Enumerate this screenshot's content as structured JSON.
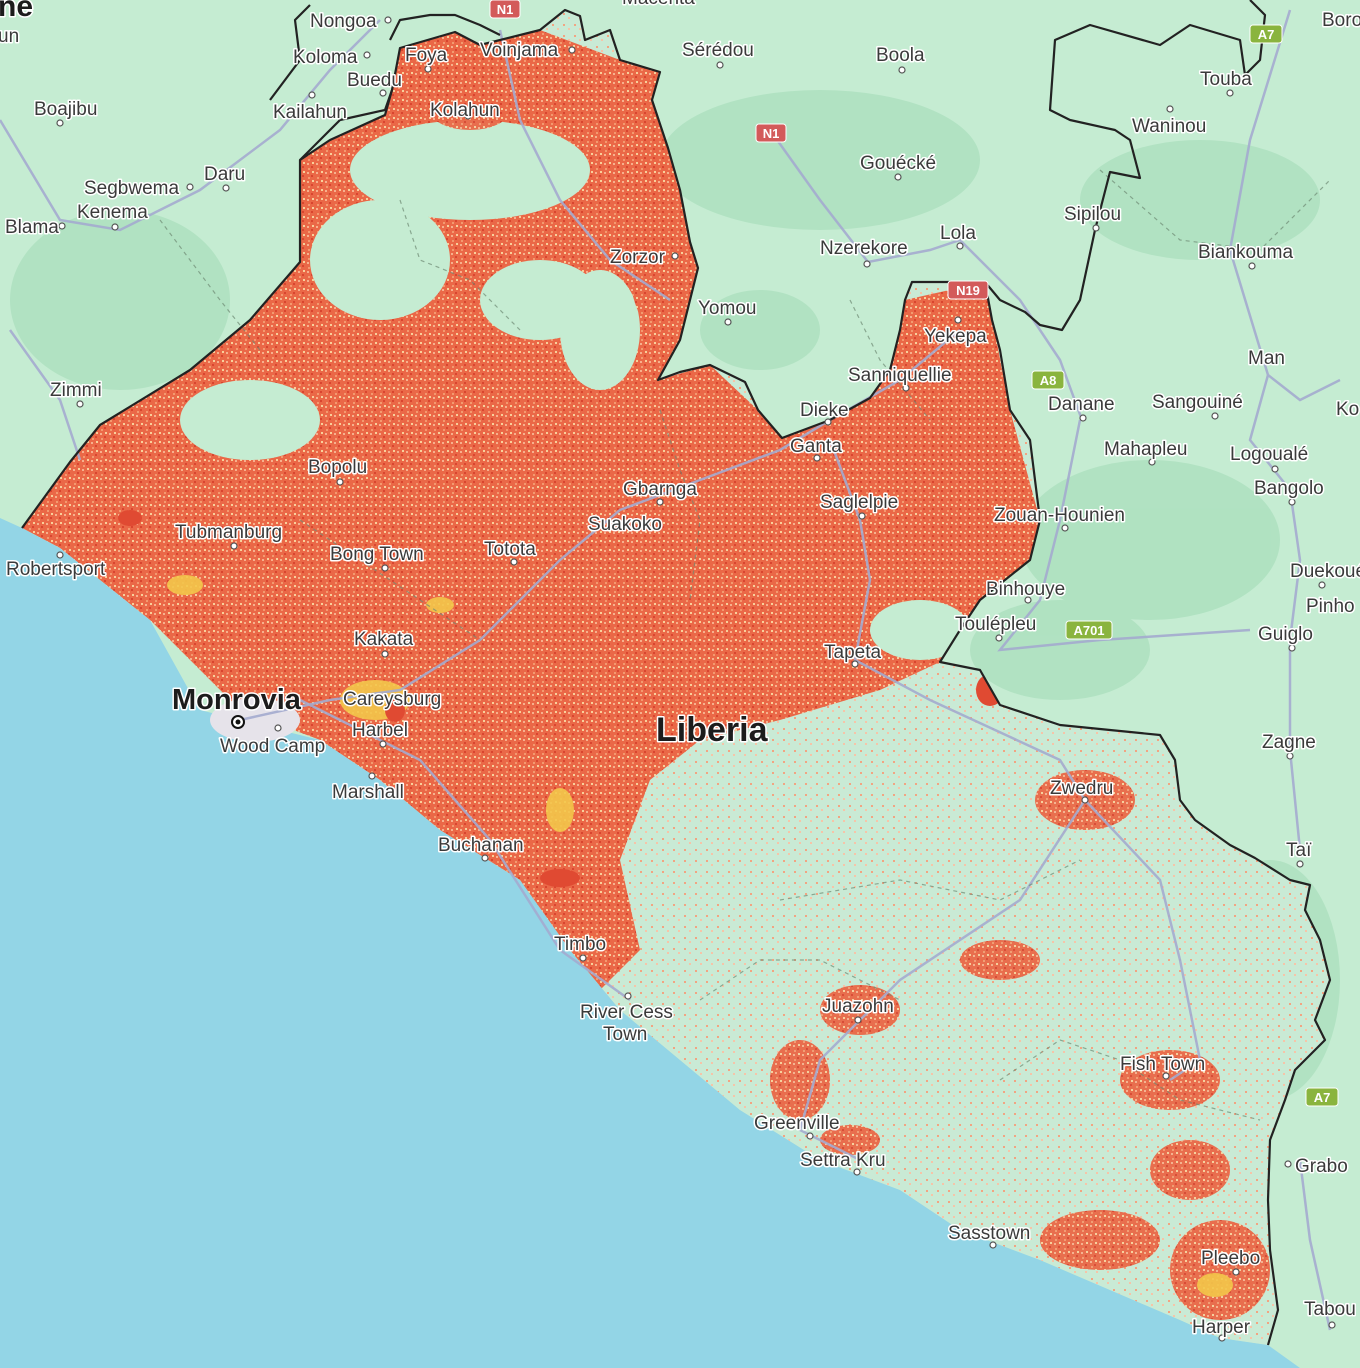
{
  "map": {
    "country_label": "Liberia",
    "capital_label": "Monrovia",
    "colors": {
      "ocean": "#93d5e6",
      "land": "#c5ecd2",
      "forest": "#abe0be",
      "heat_dense": "#e8583c",
      "heat_medium": "#f08a5a",
      "heat_light": "#f6b596",
      "heat_hot": "#f3c64a",
      "border": "#222222",
      "road": "#9aa3c8",
      "minor_road": "#7a8a7c"
    },
    "places": [
      {
        "name": "Nongoa"
      },
      {
        "name": "Koloma"
      },
      {
        "name": "Foya"
      },
      {
        "name": "Voinjama"
      },
      {
        "name": "Buedu"
      },
      {
        "name": "Kailahun"
      },
      {
        "name": "Kolahun"
      },
      {
        "name": "Boajibu"
      },
      {
        "name": "Segbwema"
      },
      {
        "name": "Daru"
      },
      {
        "name": "Kenema"
      },
      {
        "name": "Blama"
      },
      {
        "name": "Zimmi"
      },
      {
        "name": "Sérédou"
      },
      {
        "name": "Boola"
      },
      {
        "name": "Gouécké"
      },
      {
        "name": "Nzerekore"
      },
      {
        "name": "Lola"
      },
      {
        "name": "Zorzor"
      },
      {
        "name": "Yomou"
      },
      {
        "name": "Touba"
      },
      {
        "name": "Waninou"
      },
      {
        "name": "Sipilou"
      },
      {
        "name": "Biankouma"
      },
      {
        "name": "Yekepa"
      },
      {
        "name": "Sanniquellie"
      },
      {
        "name": "Dieke"
      },
      {
        "name": "Ganta"
      },
      {
        "name": "Man"
      },
      {
        "name": "Danane"
      },
      {
        "name": "Sangouiné"
      },
      {
        "name": "Mahapleu"
      },
      {
        "name": "Logoualé"
      },
      {
        "name": "Bangolo"
      },
      {
        "name": "Bopolu"
      },
      {
        "name": "Gbarnga"
      },
      {
        "name": "Suakoko"
      },
      {
        "name": "Saglelpie"
      },
      {
        "name": "Zouan-Hounien"
      },
      {
        "name": "Tubmanburg"
      },
      {
        "name": "Bong Town"
      },
      {
        "name": "Totota"
      },
      {
        "name": "Robertsport"
      },
      {
        "name": "Binhouye"
      },
      {
        "name": "Duekoué"
      },
      {
        "name": "Toulépleu"
      },
      {
        "name": "Guiglo"
      },
      {
        "name": "Kakata"
      },
      {
        "name": "Tapeta"
      },
      {
        "name": "Careysburg"
      },
      {
        "name": "Harbel"
      },
      {
        "name": "Wood Camp"
      },
      {
        "name": "Zagne"
      },
      {
        "name": "Marshall"
      },
      {
        "name": "Zwedru"
      },
      {
        "name": "Buchanan"
      },
      {
        "name": "Taï"
      },
      {
        "name": "Timbo"
      },
      {
        "name": "River Cess"
      },
      {
        "name": "Town"
      },
      {
        "name": "Juazohn"
      },
      {
        "name": "Fish Town"
      },
      {
        "name": "Greenville"
      },
      {
        "name": "Settra Kru"
      },
      {
        "name": "Grabo"
      },
      {
        "name": "Sasstown"
      },
      {
        "name": "Pleebo"
      },
      {
        "name": "Harper"
      },
      {
        "name": "Tabou"
      }
    ],
    "edge_labels": [
      {
        "name": "ne"
      },
      {
        "name": "un"
      },
      {
        "name": "Macenta"
      },
      {
        "name": "Boro"
      },
      {
        "name": "Ko"
      },
      {
        "name": "Pinho"
      }
    ],
    "road_signs": [
      {
        "label": "N1"
      },
      {
        "label": "N1"
      },
      {
        "label": "N19"
      },
      {
        "label": "A7"
      },
      {
        "label": "A8"
      },
      {
        "label": "A701"
      },
      {
        "label": "A7"
      }
    ]
  }
}
